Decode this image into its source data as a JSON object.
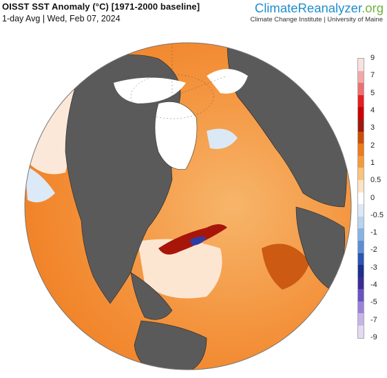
{
  "header": {
    "title": "OISST SST Anomaly (°C) [1971-2000 baseline]",
    "subtitle": "1-day Avg | Wed, Feb 07, 2024"
  },
  "brand": {
    "name_part1": "Climate",
    "name_part2": "Reanalyzer",
    "name_part3": ".org",
    "affiliation": "Climate Change Institute | University of Maine"
  },
  "legend": {
    "labels": [
      "9",
      "7",
      "5",
      "4",
      "3",
      "2",
      "1",
      "0.5",
      "0",
      "-0.5",
      "-1",
      "-2",
      "-3",
      "-4",
      "-5",
      "-7",
      "-9"
    ],
    "colors": [
      "#fbe0e0",
      "#f3a8a8",
      "#ee7070",
      "#e52020",
      "#cc0000",
      "#a0180c",
      "#cc4d0a",
      "#ee7a18",
      "#f59a3a",
      "#f9c37c",
      "#fbe3c4",
      "#ffffff",
      "#dbe8f6",
      "#b7d3ef",
      "#86b4e6",
      "#5a8fd6",
      "#2c55b4",
      "#1e2f8c",
      "#3a2c98",
      "#6a52c2",
      "#9a82d8",
      "#c6b4e6",
      "#e4daf2"
    ]
  },
  "map": {
    "land_color": "#5a5a5a",
    "ice_color": "#ffffff",
    "ocean_warm": "#f28a2a",
    "ocean_hot": "#a01a08",
    "ocean_cool": "#cfe0f4"
  }
}
